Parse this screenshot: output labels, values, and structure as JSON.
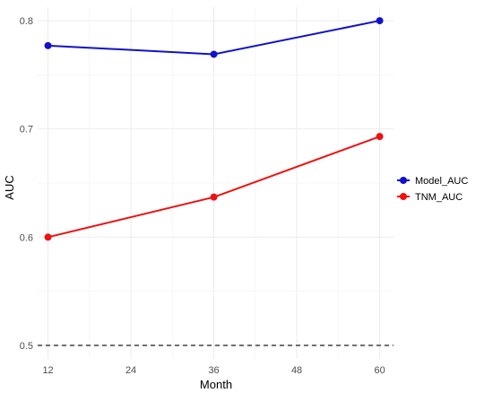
{
  "chart_data": {
    "type": "line",
    "xlabel": "Month",
    "ylabel": "AUC",
    "x": [
      12,
      36,
      60
    ],
    "xticks": [
      12,
      24,
      36,
      48,
      60
    ],
    "yticks": [
      0.5,
      0.6,
      0.7,
      0.8
    ],
    "ytick_labels": [
      "0.5",
      "0.6",
      "0.7",
      "0.8"
    ],
    "xlim": [
      10.5,
      62
    ],
    "ylim": [
      0.4875,
      0.8125
    ],
    "reference_line": {
      "y": 0.5,
      "style": "dashed",
      "color": "#333333"
    },
    "grid": true,
    "legend_position": "right",
    "series": [
      {
        "name": "Model_AUC",
        "color": "#1111cc",
        "values": [
          0.777,
          0.769,
          0.8
        ]
      },
      {
        "name": "TNM_AUC",
        "color": "#ee1111",
        "values": [
          0.6,
          0.637,
          0.693
        ]
      }
    ]
  }
}
